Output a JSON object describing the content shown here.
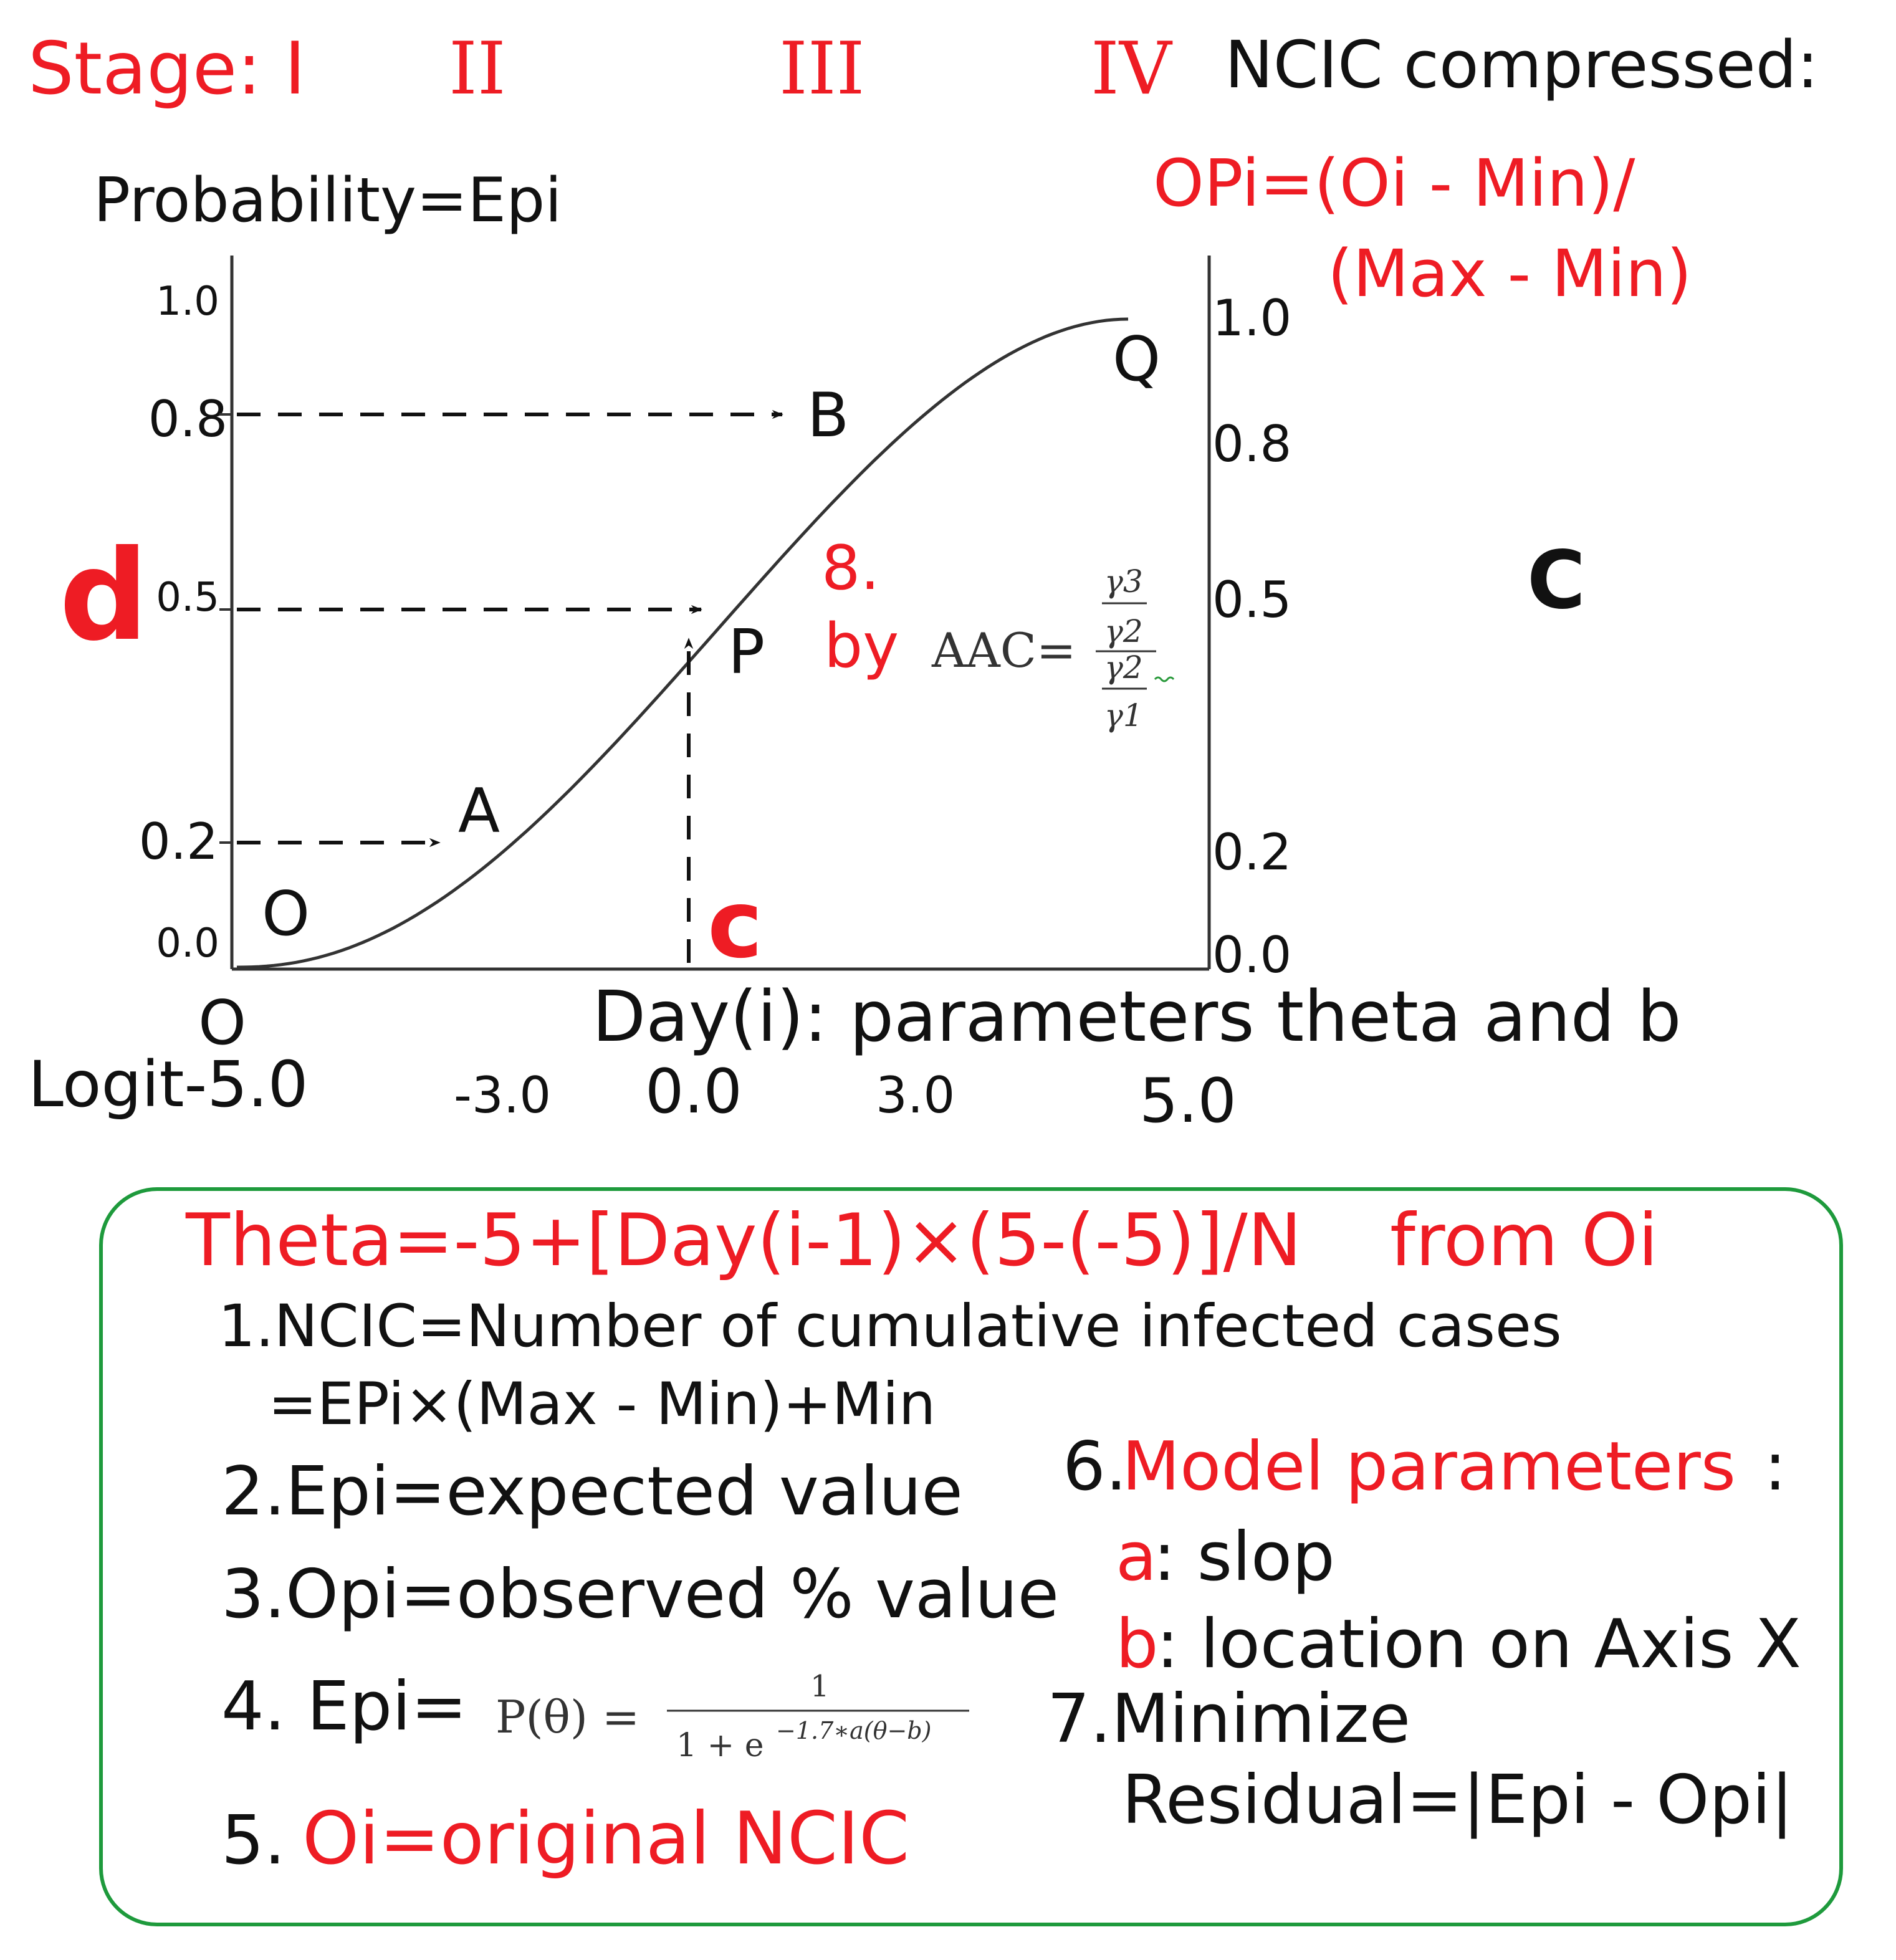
{
  "colors": {
    "red": "#ee1c24",
    "black": "#111111",
    "green": "#1e9a3c"
  },
  "stages": {
    "label": "Stage: I",
    "s2": "II",
    "s3": "III",
    "s4": "IV"
  },
  "compress": {
    "title": "NCIC compressed:",
    "formula_1": "OPi=(Oi - Min)/",
    "formula_2": "(Max - Min)"
  },
  "axes": {
    "y_title": "Probability=Epi",
    "x_title": "Day(i): parameters theta and b",
    "y_left": [
      "1.0",
      "0.8",
      "0.5",
      "0.2",
      "0.0"
    ],
    "y_right": [
      "1.0",
      "0.8",
      "0.5",
      "0.2",
      "0.0"
    ],
    "x_origin": "O",
    "x_ticks": [
      "Logit-5.0",
      "-3.0",
      "0.0",
      "3.0",
      "5.0"
    ]
  },
  "chart_data": {
    "type": "line",
    "curve": "logistic",
    "xlim": [
      -5,
      5
    ],
    "ylim": [
      0,
      1
    ],
    "points": [
      {
        "label": "O",
        "x": -5.0,
        "y": 0.0
      },
      {
        "label": "A",
        "x": -3.0,
        "y": 0.2
      },
      {
        "label": "P",
        "x": 0.0,
        "y": 0.5
      },
      {
        "label": "B",
        "x": 1.0,
        "y": 0.8
      },
      {
        "label": "Q",
        "x": 5.0,
        "y": 1.0
      }
    ],
    "arrows_to_curve": [
      0.2,
      0.5,
      0.8
    ],
    "vertical_arrow_x": 0.0
  },
  "annotations": {
    "d": "d",
    "c_small": "c",
    "c_large": "C",
    "n8_num": "8.",
    "n8_by": "by",
    "aac": {
      "lhs": "AAC=",
      "g3": "γ3",
      "g2a": "γ2",
      "g2b": "γ2",
      "g1": "γ1"
    }
  },
  "notes": {
    "theta": "Theta=-5+[Day(i-1)×(5-(-5)]/N",
    "from": "from Oi",
    "n1a": "1.NCIC=Number of cumulative infected cases",
    "n1b": "=EPi×(Max - Min)+Min",
    "n2": "2.Epi=expected value",
    "n3": "3.Opi=observed % value",
    "n4": "4. Epi=",
    "formula": {
      "lhs": "P(θ) =",
      "num": "1",
      "den": "1 + e",
      "exp": "−1.7∗a(θ−b)"
    },
    "n5_num": "5.",
    "n5_text": "Oi=original NCIC",
    "n6_num": "6.",
    "n6_text": "Model parameters",
    "n6_colon": ":",
    "a_key": "a",
    "a_text": ": slop",
    "b_key": "b",
    "b_text": ": location on Axis X",
    "n7a": "7.Minimize",
    "n7b": "Residual=|Epi - Opi|"
  }
}
